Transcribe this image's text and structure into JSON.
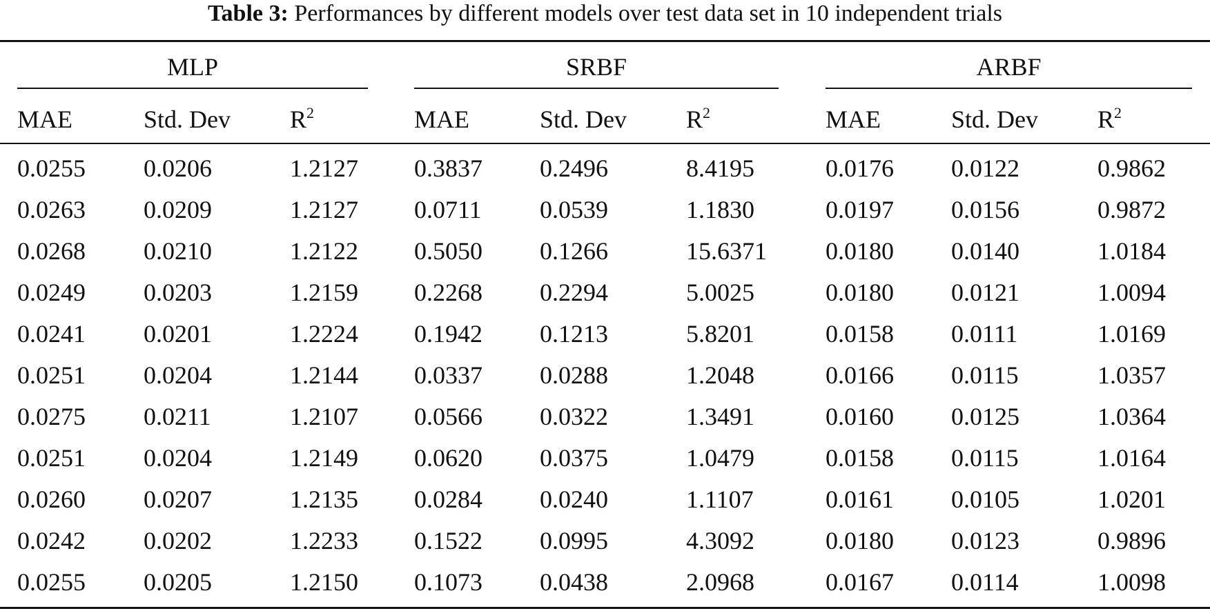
{
  "caption": {
    "label": "Table 3:",
    "text": "Performances by different models over test data set in 10 independent trials"
  },
  "groups": [
    "MLP",
    "SRBF",
    "ARBF"
  ],
  "columns": [
    {
      "base": "MAE",
      "sup": ""
    },
    {
      "base": "Std. Dev",
      "sup": ""
    },
    {
      "base": "R",
      "sup": "2"
    },
    {
      "base": "MAE",
      "sup": ""
    },
    {
      "base": "Std. Dev",
      "sup": ""
    },
    {
      "base": "R",
      "sup": "2"
    },
    {
      "base": "MAE",
      "sup": ""
    },
    {
      "base": "Std. Dev",
      "sup": ""
    },
    {
      "base": "R",
      "sup": "2"
    }
  ],
  "rows": [
    [
      "0.0255",
      "0.0206",
      "1.2127",
      "0.3837",
      "0.2496",
      "8.4195",
      "0.0176",
      "0.0122",
      "0.9862"
    ],
    [
      "0.0263",
      "0.0209",
      "1.2127",
      "0.0711",
      "0.0539",
      "1.1830",
      "0.0197",
      "0.0156",
      "0.9872"
    ],
    [
      "0.0268",
      "0.0210",
      "1.2122",
      "0.5050",
      "0.1266",
      "15.6371",
      "0.0180",
      "0.0140",
      "1.0184"
    ],
    [
      "0.0249",
      "0.0203",
      "1.2159",
      "0.2268",
      "0.2294",
      "5.0025",
      "0.0180",
      "0.0121",
      "1.0094"
    ],
    [
      "0.0241",
      "0.0201",
      "1.2224",
      "0.1942",
      "0.1213",
      "5.8201",
      "0.0158",
      "0.0111",
      "1.0169"
    ],
    [
      "0.0251",
      "0.0204",
      "1.2144",
      "0.0337",
      "0.0288",
      "1.2048",
      "0.0166",
      "0.0115",
      "1.0357"
    ],
    [
      "0.0275",
      "0.0211",
      "1.2107",
      "0.0566",
      "0.0322",
      "1.3491",
      "0.0160",
      "0.0125",
      "1.0364"
    ],
    [
      "0.0251",
      "0.0204",
      "1.2149",
      "0.0620",
      "0.0375",
      "1.0479",
      "0.0158",
      "0.0115",
      "1.0164"
    ],
    [
      "0.0260",
      "0.0207",
      "1.2135",
      "0.0284",
      "0.0240",
      "1.1107",
      "0.0161",
      "0.0105",
      "1.0201"
    ],
    [
      "0.0242",
      "0.0202",
      "1.2233",
      "0.1522",
      "0.0995",
      "4.3092",
      "0.0180",
      "0.0123",
      "0.9896"
    ],
    [
      "0.0255",
      "0.0205",
      "1.2150",
      "0.1073",
      "0.0438",
      "2.0968",
      "0.0167",
      "0.0114",
      "1.0098"
    ]
  ]
}
